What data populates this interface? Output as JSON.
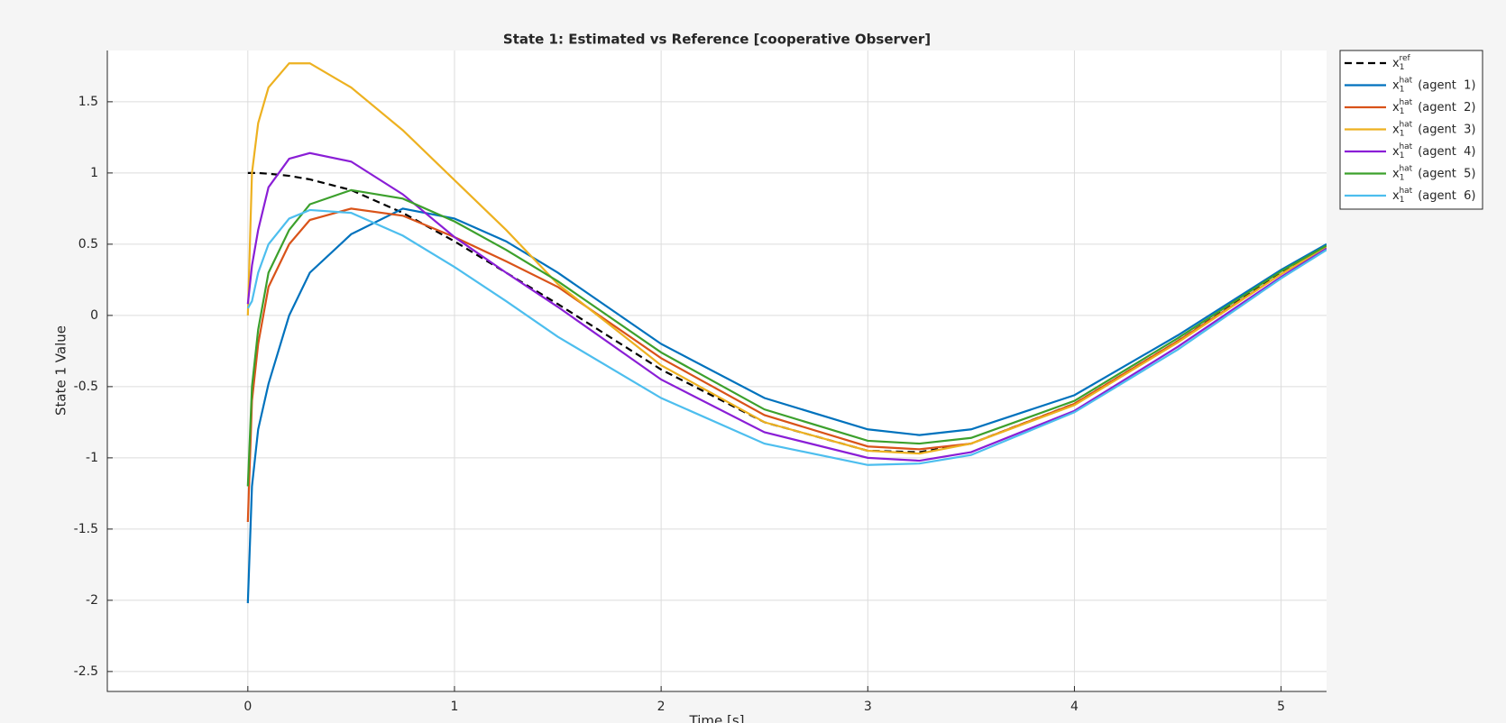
{
  "chart_data": {
    "type": "line",
    "title": "State 1: Estimated vs Reference [cooperative Observer]",
    "x_label": "Time [s]",
    "y_label": "State 1 Value",
    "x": [
      0,
      0.02,
      0.05,
      0.1,
      0.2,
      0.3,
      0.5,
      0.75,
      1,
      1.25,
      1.5,
      2,
      2.5,
      3,
      3.25,
      3.5,
      4,
      4.5,
      5,
      5.22
    ],
    "series": [
      {
        "name": "x",
        "name_sub": "1",
        "name_sup": "ref",
        "color": "#000000",
        "line_style": "dashed",
        "values": [
          1,
          1,
          1,
          0.995,
          0.98,
          0.955,
          0.88,
          0.72,
          0.52,
          0.3,
          0.08,
          -0.38,
          -0.75,
          -0.95,
          -0.96,
          -0.9,
          -0.62,
          -0.18,
          0.3,
          0.48
        ]
      },
      {
        "name": "x",
        "name_sub": "1",
        "name_sup": "hat",
        "name_suffix": "(agent  1)",
        "color": "#0072bd",
        "line_style": "solid",
        "values": [
          -2.02,
          -1.2,
          -0.8,
          -0.48,
          0.0,
          0.3,
          0.57,
          0.75,
          0.68,
          0.52,
          0.3,
          -0.2,
          -0.58,
          -0.8,
          -0.84,
          -0.8,
          -0.56,
          -0.14,
          0.32,
          0.5
        ]
      },
      {
        "name": "x",
        "name_sub": "1",
        "name_sup": "hat",
        "name_suffix": "(agent  2)",
        "color": "#d95319",
        "line_style": "solid",
        "values": [
          -1.45,
          -0.6,
          -0.2,
          0.2,
          0.5,
          0.67,
          0.75,
          0.7,
          0.55,
          0.38,
          0.2,
          -0.3,
          -0.7,
          -0.92,
          -0.94,
          -0.9,
          -0.62,
          -0.18,
          0.29,
          0.48
        ]
      },
      {
        "name": "x",
        "name_sub": "1",
        "name_sup": "hat",
        "name_suffix": "(agent  3)",
        "color": "#edb120",
        "line_style": "solid",
        "values": [
          0,
          1.0,
          1.35,
          1.6,
          1.77,
          1.77,
          1.6,
          1.3,
          0.95,
          0.6,
          0.22,
          -0.35,
          -0.75,
          -0.95,
          -0.97,
          -0.9,
          -0.63,
          -0.19,
          0.29,
          0.48
        ]
      },
      {
        "name": "x",
        "name_sub": "1",
        "name_sup": "hat",
        "name_suffix": "(agent  4)",
        "color": "#8a1ed6",
        "line_style": "solid",
        "values": [
          0.08,
          0.35,
          0.6,
          0.9,
          1.1,
          1.14,
          1.08,
          0.85,
          0.55,
          0.3,
          0.06,
          -0.45,
          -0.82,
          -1.0,
          -1.02,
          -0.96,
          -0.67,
          -0.22,
          0.27,
          0.47
        ]
      },
      {
        "name": "x",
        "name_sub": "1",
        "name_sup": "hat",
        "name_suffix": "(agent  5)",
        "color": "#3ca02c",
        "line_style": "solid",
        "values": [
          -1.2,
          -0.5,
          -0.1,
          0.3,
          0.6,
          0.78,
          0.88,
          0.82,
          0.66,
          0.46,
          0.24,
          -0.26,
          -0.66,
          -0.88,
          -0.9,
          -0.86,
          -0.6,
          -0.16,
          0.31,
          0.49
        ]
      },
      {
        "name": "x",
        "name_sub": "1",
        "name_sup": "hat",
        "name_suffix": "(agent  6)",
        "color": "#4dbeee",
        "line_style": "solid",
        "values": [
          0.05,
          0.1,
          0.3,
          0.5,
          0.68,
          0.74,
          0.72,
          0.56,
          0.34,
          0.1,
          -0.15,
          -0.58,
          -0.9,
          -1.05,
          -1.04,
          -0.98,
          -0.68,
          -0.24,
          0.26,
          0.46
        ]
      }
    ],
    "xlim": [
      -0.68,
      5.22
    ],
    "xticks": [
      0,
      1,
      2,
      3,
      4,
      5
    ],
    "ylim": [
      -2.64,
      1.86
    ],
    "yticks": [
      -2.5,
      -2,
      -1.5,
      -1,
      -0.5,
      0,
      0.5,
      1,
      1.5
    ],
    "grid": true,
    "legend": "outside-right"
  }
}
